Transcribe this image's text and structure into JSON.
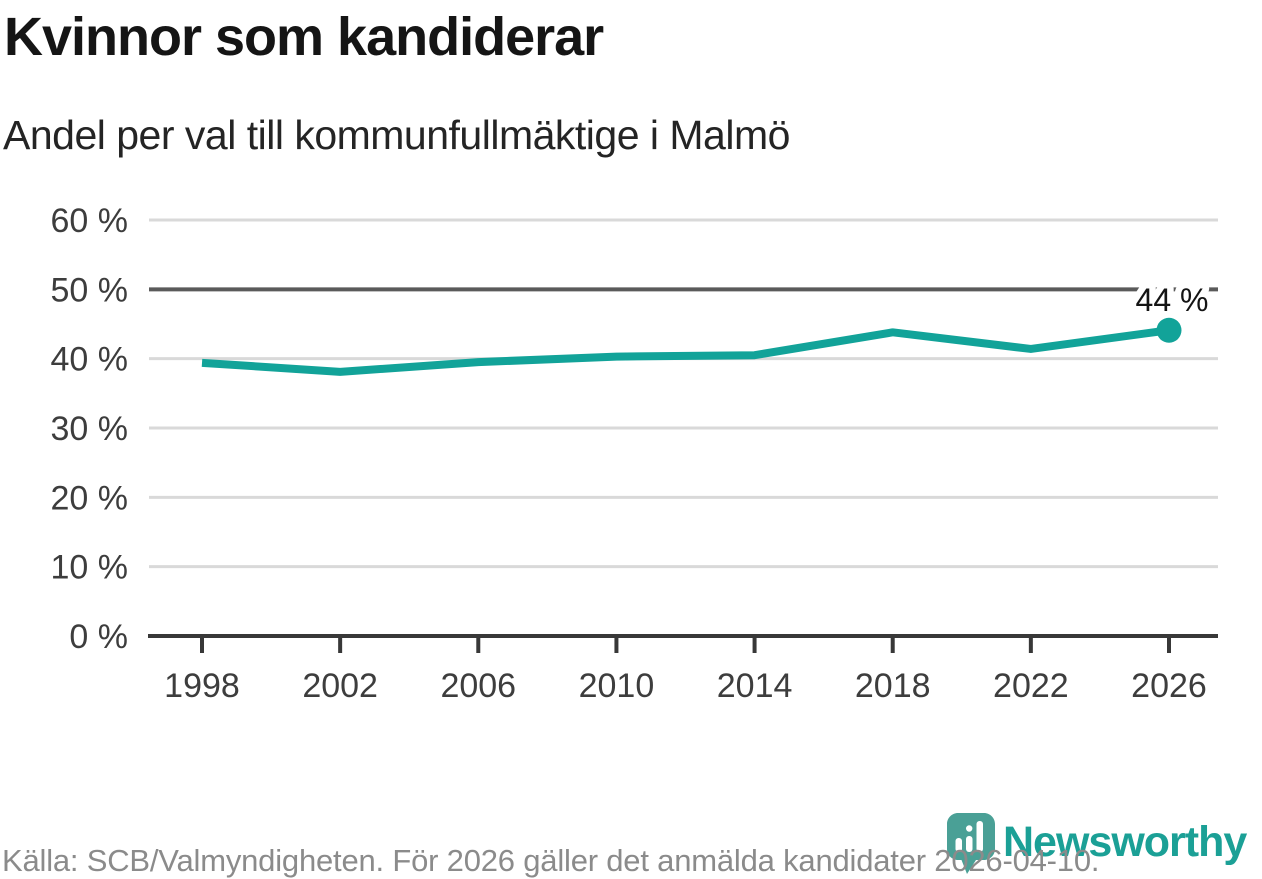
{
  "header": {
    "title": "Kvinnor som kandiderar",
    "subtitle": "Andel per val till kommunfullmäktige i Malmö"
  },
  "footer": {
    "source": "Källa: SCB/Valmyndigheten. För 2026 gäller det anmälda kandidater 2026-04-10."
  },
  "branding": {
    "name": "Newsworthy",
    "icon": "newsworthy-bar-chart-pin-badge"
  },
  "colors": {
    "line": "#12a399",
    "grid": "#d9d9d9",
    "grid_strong": "#5a5a5a",
    "axis": "#383838",
    "text": "#151515",
    "muted": "#8b8b8b",
    "brand_badge": "#4aa096",
    "brand_text": "#1ba096"
  },
  "chart_data": {
    "type": "line",
    "title": "Kvinnor som kandiderar",
    "subtitle": "Andel per val till kommunfullmäktige i Malmö",
    "x": [
      1998,
      2002,
      2006,
      2010,
      2014,
      2018,
      2022,
      2026
    ],
    "x_tick_labels": [
      "1998",
      "2002",
      "2006",
      "2010",
      "2014",
      "2018",
      "2022",
      "2026"
    ],
    "series": [
      {
        "name": "Kvinnor som kandiderar",
        "values": [
          39.4,
          38.1,
          39.5,
          40.3,
          40.5,
          43.8,
          41.4,
          44.1
        ]
      }
    ],
    "end_point_label": "44 %",
    "ylim": [
      0,
      60
    ],
    "y_ticks": [
      0,
      10,
      20,
      30,
      40,
      50,
      60
    ],
    "y_tick_labels": [
      "0 %",
      "10 %",
      "20 %",
      "30 %",
      "40 %",
      "50 %",
      "60 %"
    ],
    "emphasized_gridline_at": 50,
    "grid": true,
    "legend": "none"
  }
}
